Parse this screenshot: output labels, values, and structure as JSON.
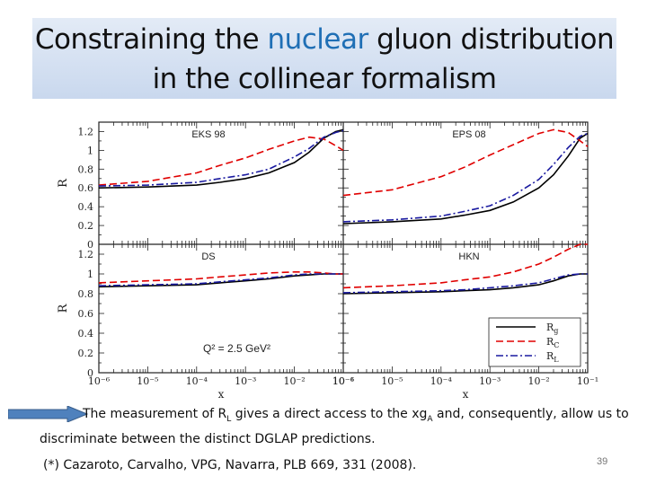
{
  "slide": {
    "title_pre": "Constraining the ",
    "title_hl": "nuclear",
    "title_post": " gluon distribution in the collinear formalism",
    "desc_p1": "The measurement of  R",
    "desc_sub1": "L",
    "desc_p2": " gives a direct access to the xg",
    "desc_sub2": "A",
    "desc_p3": " and, consequently, allow us to discriminate between the distinct DGLAP predictions.",
    "reference": "(*) Cazaroto, Carvalho, VPG, Navarra, PLB 669, 331 (2008).",
    "page_number": "39",
    "accent_color": "#1f6fb5",
    "arrow_color": "#4f81bd"
  },
  "chart_data": {
    "type": "line",
    "layout": "2x2 panels, shared axes",
    "xscale": "log",
    "xlim": [
      1e-06,
      0.1
    ],
    "ylim": [
      0,
      1.3
    ],
    "ylabel": "R",
    "xlabel": "x",
    "x_ticks": [
      "10⁻⁶",
      "10⁻⁵",
      "10⁻⁴",
      "10⁻³",
      "10⁻²",
      "10⁻¹"
    ],
    "y_ticks": [
      "0",
      "0.2",
      "0.4",
      "0.6",
      "0.8",
      "1",
      "1.2"
    ],
    "annotation": "Q² = 2.5 GeV²",
    "legend_position": "bottom-right of lower-right panel",
    "legend": [
      "R_g",
      "R_C",
      "R_L"
    ],
    "series_styles": [
      {
        "name": "R_g",
        "color": "#000000",
        "dash": "solid"
      },
      {
        "name": "R_C",
        "color": "#e00000",
        "dash": "dashed"
      },
      {
        "name": "R_L",
        "color": "#1a1aa0",
        "dash": "dashdot"
      }
    ],
    "x": [
      1e-06,
      1e-05,
      0.0001,
      0.0003,
      0.001,
      0.003,
      0.01,
      0.02,
      0.04,
      0.07,
      0.1
    ],
    "panels": [
      {
        "label": "EKS 98",
        "series": [
          {
            "name": "R_g",
            "values": [
              0.6,
              0.61,
              0.63,
              0.66,
              0.7,
              0.76,
              0.87,
              0.98,
              1.13,
              1.2,
              1.22
            ]
          },
          {
            "name": "R_C",
            "values": [
              0.63,
              0.67,
              0.76,
              0.84,
              0.92,
              1.01,
              1.1,
              1.14,
              1.12,
              1.05,
              1.0
            ]
          },
          {
            "name": "R_L",
            "values": [
              0.62,
              0.63,
              0.66,
              0.7,
              0.74,
              0.8,
              0.93,
              1.02,
              1.14,
              1.19,
              1.21
            ]
          }
        ]
      },
      {
        "label": "EPS 08",
        "series": [
          {
            "name": "R_g",
            "values": [
              0.22,
              0.24,
              0.27,
              0.31,
              0.36,
              0.45,
              0.6,
              0.74,
              0.94,
              1.13,
              1.18
            ]
          },
          {
            "name": "R_C",
            "values": [
              0.52,
              0.58,
              0.72,
              0.82,
              0.95,
              1.06,
              1.18,
              1.22,
              1.19,
              1.1,
              1.04
            ]
          },
          {
            "name": "R_L",
            "values": [
              0.24,
              0.26,
              0.3,
              0.35,
              0.41,
              0.52,
              0.69,
              0.85,
              1.03,
              1.15,
              1.18
            ]
          }
        ]
      },
      {
        "label": "DS",
        "series": [
          {
            "name": "R_g",
            "values": [
              0.87,
              0.88,
              0.89,
              0.91,
              0.93,
              0.95,
              0.98,
              0.99,
              1.0,
              1.0,
              1.0
            ]
          },
          {
            "name": "R_C",
            "values": [
              0.91,
              0.93,
              0.95,
              0.97,
              0.99,
              1.01,
              1.02,
              1.02,
              1.01,
              1.0,
              1.0
            ]
          },
          {
            "name": "R_L",
            "values": [
              0.88,
              0.89,
              0.9,
              0.92,
              0.94,
              0.96,
              0.99,
              1.0,
              1.0,
              1.0,
              1.0
            ]
          }
        ]
      },
      {
        "label": "HKN",
        "series": [
          {
            "name": "R_g",
            "values": [
              0.8,
              0.81,
              0.82,
              0.83,
              0.84,
              0.86,
              0.89,
              0.93,
              0.98,
              1.0,
              1.0
            ]
          },
          {
            "name": "R_C",
            "values": [
              0.86,
              0.88,
              0.91,
              0.94,
              0.97,
              1.02,
              1.1,
              1.17,
              1.25,
              1.3,
              1.3
            ]
          },
          {
            "name": "R_L",
            "values": [
              0.81,
              0.82,
              0.83,
              0.84,
              0.86,
              0.88,
              0.91,
              0.95,
              0.99,
              1.0,
              1.0
            ]
          }
        ]
      }
    ]
  }
}
